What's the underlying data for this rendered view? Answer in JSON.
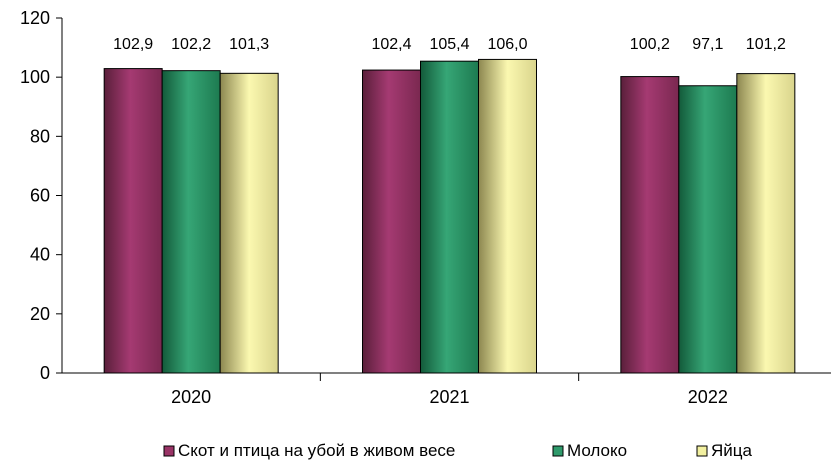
{
  "chart_data": {
    "type": "bar",
    "title": "",
    "xlabel": "",
    "ylabel": "",
    "categories": [
      "2020",
      "2021",
      "2022"
    ],
    "series": [
      {
        "name": "Скот и птица на убой в живом весе",
        "values": [
          102.9,
          102.4,
          100.2
        ],
        "labels": [
          "102,9",
          "102,4",
          "100,2"
        ],
        "color": "#993366"
      },
      {
        "name": "Молоко",
        "values": [
          102.2,
          105.4,
          97.1
        ],
        "labels": [
          "102,2",
          "105,4",
          "97,1"
        ],
        "color": "#2f9a6b"
      },
      {
        "name": "Яйца",
        "values": [
          101.3,
          106.0,
          101.2
        ],
        "labels": [
          "101,3",
          "106,0",
          "101,2"
        ],
        "color": "#f2f0a0"
      }
    ],
    "ylim": [
      0,
      120
    ],
    "yticks": [
      0,
      20,
      40,
      60,
      80,
      100,
      120
    ],
    "ytick_labels": [
      "0",
      "20",
      "40",
      "60",
      "80",
      "100",
      "120"
    ],
    "grid": false,
    "legend_position": "bottom"
  }
}
